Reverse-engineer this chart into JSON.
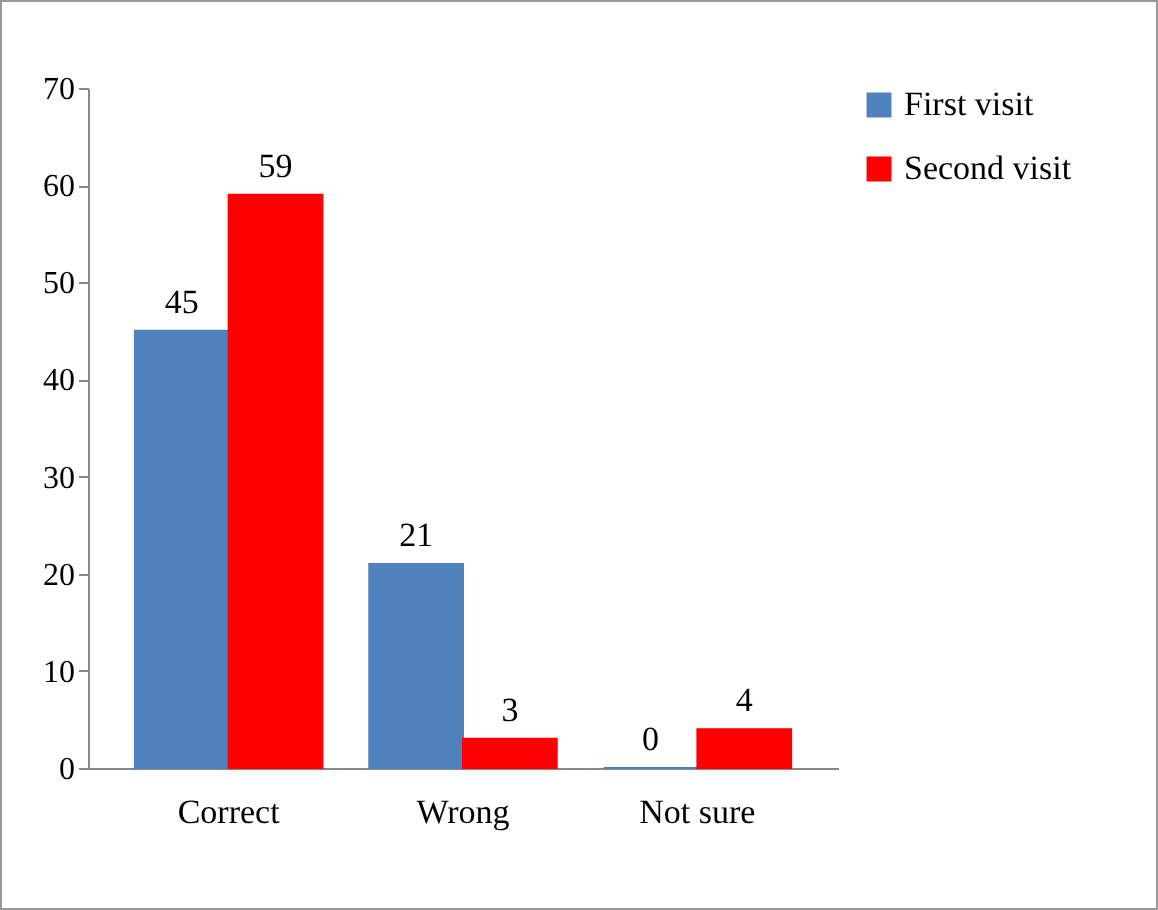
{
  "chart_data": {
    "type": "bar",
    "categories": [
      "Correct",
      "Wrong",
      "Not sure"
    ],
    "series": [
      {
        "name": "First visit",
        "color": "#4f81bd",
        "values": [
          45,
          21,
          0
        ]
      },
      {
        "name": "Second visit",
        "color": "#ff0000",
        "values": [
          59,
          3,
          4
        ]
      }
    ],
    "ylim": [
      0,
      70
    ],
    "yticks": [
      0,
      10,
      20,
      30,
      40,
      50,
      60,
      70
    ],
    "grid": false,
    "legend": "right",
    "data_labels": true
  }
}
